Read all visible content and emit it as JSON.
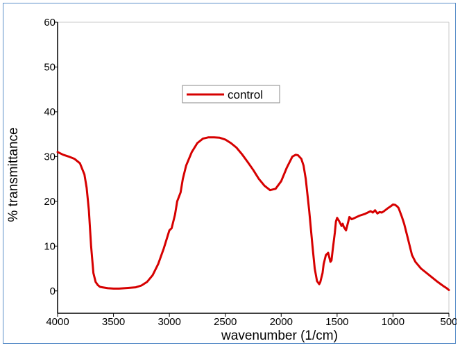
{
  "chart_data": {
    "type": "line",
    "title": "",
    "xlabel": "wavenumber (1/cm)",
    "ylabel": "% transmittance",
    "xlim": [
      4000,
      500
    ],
    "ylim": [
      -5,
      60
    ],
    "x_ticks": [
      4000,
      3500,
      3000,
      2500,
      2000,
      1500,
      1000,
      500
    ],
    "y_ticks": [
      0,
      10,
      20,
      30,
      40,
      50,
      60
    ],
    "grid": false,
    "legend": "top-center",
    "colors": {
      "line": "#d60000",
      "axis": "#000000",
      "frame": "#5b8fc9"
    },
    "series": [
      {
        "name": "control",
        "x": [
          4000,
          3950,
          3900,
          3850,
          3800,
          3760,
          3740,
          3720,
          3700,
          3680,
          3660,
          3640,
          3620,
          3600,
          3550,
          3500,
          3450,
          3400,
          3300,
          3250,
          3200,
          3150,
          3100,
          3050,
          3000,
          2980,
          2950,
          2930,
          2900,
          2880,
          2850,
          2800,
          2750,
          2700,
          2650,
          2600,
          2550,
          2500,
          2450,
          2400,
          2350,
          2300,
          2250,
          2200,
          2150,
          2100,
          2050,
          2000,
          1950,
          1900,
          1870,
          1850,
          1820,
          1800,
          1780,
          1750,
          1720,
          1700,
          1680,
          1660,
          1650,
          1640,
          1630,
          1620,
          1600,
          1580,
          1570,
          1560,
          1550,
          1540,
          1530,
          1520,
          1510,
          1500,
          1480,
          1460,
          1450,
          1440,
          1420,
          1400,
          1390,
          1370,
          1350,
          1300,
          1250,
          1200,
          1180,
          1160,
          1140,
          1120,
          1100,
          1080,
          1050,
          1020,
          1000,
          980,
          960,
          950,
          920,
          900,
          870,
          850,
          830,
          800,
          750,
          700,
          650,
          600,
          550,
          520,
          500
        ],
        "y": [
          31,
          30.4,
          30,
          29.5,
          28.5,
          26,
          23,
          18,
          10,
          4,
          2,
          1.3,
          0.9,
          0.8,
          0.6,
          0.5,
          0.5,
          0.6,
          0.8,
          1.2,
          2,
          3.5,
          6,
          9.5,
          13.5,
          14,
          17,
          20,
          22,
          25,
          28,
          31,
          33,
          34,
          34.3,
          34.3,
          34.2,
          33.8,
          33,
          32,
          30.5,
          28.8,
          27,
          25,
          23.5,
          22.5,
          22.8,
          24.5,
          27.5,
          30,
          30.4,
          30.3,
          29.5,
          28,
          25,
          18,
          10,
          5,
          2.2,
          1.5,
          2,
          3,
          4,
          6,
          8,
          8.5,
          7.5,
          6.5,
          6.8,
          9,
          11,
          13,
          15.5,
          16.3,
          15.5,
          14.5,
          15,
          14.3,
          13.5,
          15.5,
          16.5,
          16,
          16.2,
          16.8,
          17.2,
          17.8,
          17.5,
          18,
          17.3,
          17.6,
          17.5,
          17.8,
          18.4,
          18.9,
          19.3,
          19.2,
          18.8,
          18.5,
          16.5,
          15,
          12,
          10,
          8,
          6.5,
          5,
          4,
          3,
          2,
          1.1,
          0.6,
          0.2
        ]
      }
    ]
  }
}
